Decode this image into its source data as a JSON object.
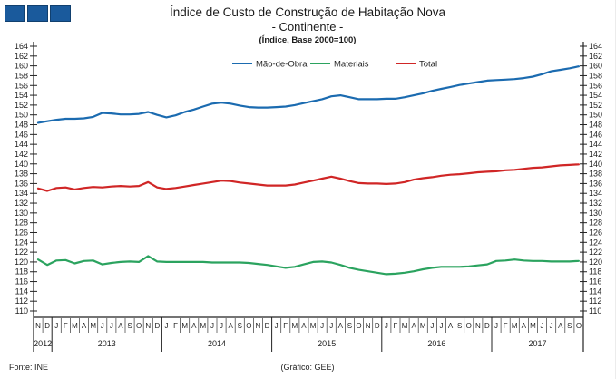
{
  "logo": {
    "square_count": 3,
    "color": "#1a5a9c"
  },
  "footer": {
    "source": "Fonte: INE",
    "credit": "(Gráfico: GEE)"
  },
  "colors": {
    "mao_de_obra": "#1b6bb0",
    "materiais": "#2ba35f",
    "total": "#d02626",
    "axis": "#222222"
  },
  "chart_data": {
    "type": "line",
    "title": "Índice de Custo de Construção de Habitação Nova",
    "subtitle": "- Continente -",
    "note": "(Índice, Base 2000=100)",
    "ylim": [
      110,
      164
    ],
    "ytick_step": 2,
    "grid": false,
    "legend_position": "top-center",
    "x": {
      "months": [
        "N",
        "D",
        "J",
        "F",
        "M",
        "A",
        "M",
        "J",
        "J",
        "A",
        "S",
        "O",
        "N",
        "D",
        "J",
        "F",
        "M",
        "A",
        "M",
        "J",
        "J",
        "A",
        "S",
        "O",
        "N",
        "D",
        "J",
        "F",
        "M",
        "A",
        "M",
        "J",
        "J",
        "A",
        "S",
        "O",
        "N",
        "D",
        "J",
        "F",
        "M",
        "A",
        "M",
        "J",
        "J",
        "A",
        "S",
        "O",
        "N",
        "D",
        "J",
        "F",
        "M",
        "A",
        "M",
        "J",
        "J",
        "A",
        "S",
        "O"
      ],
      "years": [
        {
          "label": "2012",
          "span": 2
        },
        {
          "label": "2013",
          "span": 12
        },
        {
          "label": "2014",
          "span": 12
        },
        {
          "label": "2015",
          "span": 12
        },
        {
          "label": "2016",
          "span": 12
        },
        {
          "label": "2017",
          "span": 10
        }
      ]
    },
    "series": [
      {
        "name": "Mão-de-Obra",
        "color": "#1b6bb0",
        "values": [
          148.4,
          148.7,
          149.0,
          149.2,
          149.2,
          149.3,
          149.6,
          150.4,
          150.3,
          150.1,
          150.1,
          150.2,
          150.6,
          150.0,
          149.5,
          149.9,
          150.6,
          151.1,
          151.7,
          152.3,
          152.5,
          152.3,
          151.9,
          151.6,
          151.5,
          151.5,
          151.6,
          151.7,
          152.0,
          152.4,
          152.8,
          153.2,
          153.8,
          154.0,
          153.6,
          153.2,
          153.2,
          153.2,
          153.3,
          153.3,
          153.6,
          154.0,
          154.4,
          154.9,
          155.3,
          155.7,
          156.1,
          156.4,
          156.7,
          157.0,
          157.1,
          157.2,
          157.3,
          157.5,
          157.8,
          158.3,
          158.9,
          159.2,
          159.5,
          159.9
        ]
      },
      {
        "name": "Materiais",
        "color": "#2ba35f",
        "values": [
          120.5,
          119.4,
          120.3,
          120.4,
          119.7,
          120.2,
          120.3,
          119.5,
          119.8,
          120.0,
          120.1,
          120.0,
          121.2,
          120.1,
          120.0,
          120.0,
          120.0,
          120.0,
          120.0,
          119.9,
          119.9,
          119.9,
          119.9,
          119.8,
          119.6,
          119.4,
          119.1,
          118.8,
          119.0,
          119.5,
          120.0,
          120.1,
          119.9,
          119.4,
          118.8,
          118.4,
          118.1,
          117.8,
          117.5,
          117.6,
          117.8,
          118.1,
          118.5,
          118.8,
          119.0,
          119.0,
          119.0,
          119.1,
          119.3,
          119.5,
          120.2,
          120.3,
          120.5,
          120.3,
          120.2,
          120.2,
          120.1,
          120.1,
          120.1,
          120.2
        ]
      },
      {
        "name": "Total",
        "color": "#d02626",
        "values": [
          135.0,
          134.5,
          135.1,
          135.2,
          134.8,
          135.1,
          135.3,
          135.2,
          135.4,
          135.5,
          135.4,
          135.5,
          136.3,
          135.2,
          134.9,
          135.1,
          135.4,
          135.7,
          136.0,
          136.3,
          136.6,
          136.5,
          136.2,
          136.0,
          135.8,
          135.6,
          135.6,
          135.6,
          135.8,
          136.2,
          136.6,
          137.0,
          137.4,
          137.0,
          136.5,
          136.1,
          136.0,
          136.0,
          135.9,
          136.0,
          136.3,
          136.8,
          137.1,
          137.3,
          137.6,
          137.8,
          137.9,
          138.1,
          138.3,
          138.4,
          138.5,
          138.7,
          138.8,
          139.0,
          139.2,
          139.3,
          139.5,
          139.7,
          139.8,
          139.9
        ]
      }
    ]
  }
}
